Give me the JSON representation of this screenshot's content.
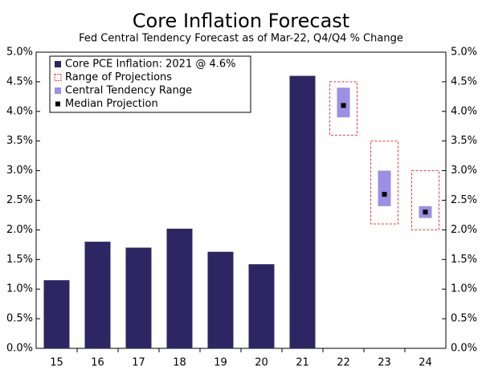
{
  "chart_data": {
    "type": "bar",
    "title": "Core Inflation Forecast",
    "subtitle": "Fed Central Tendency Forecast as of Mar-22, Q4/Q4 % Change",
    "categories": [
      "15",
      "16",
      "17",
      "18",
      "19",
      "20",
      "21",
      "22",
      "23",
      "24"
    ],
    "series": [
      {
        "name": "Core PCE Inflation: 2021 @ 4.6%",
        "kind": "bar",
        "color": "#2e2662",
        "values": [
          1.15,
          1.8,
          1.7,
          2.02,
          1.63,
          1.42,
          4.6,
          null,
          null,
          null
        ]
      },
      {
        "name": "Range of Projections",
        "kind": "range-outline",
        "color": "#e8383d",
        "low": [
          null,
          null,
          null,
          null,
          null,
          null,
          null,
          3.6,
          2.1,
          2.0
        ],
        "high": [
          null,
          null,
          null,
          null,
          null,
          null,
          null,
          4.5,
          3.5,
          3.0
        ]
      },
      {
        "name": "Central Tendency Range",
        "kind": "range",
        "color": "#9d8fe3",
        "low": [
          null,
          null,
          null,
          null,
          null,
          null,
          null,
          3.9,
          2.4,
          2.2
        ],
        "high": [
          null,
          null,
          null,
          null,
          null,
          null,
          null,
          4.4,
          3.0,
          2.4
        ]
      },
      {
        "name": "Median Projection",
        "kind": "point",
        "color": "#000000",
        "values": [
          null,
          null,
          null,
          null,
          null,
          null,
          null,
          4.1,
          2.6,
          2.3
        ]
      }
    ],
    "ylim": [
      0,
      5
    ],
    "yticks": [
      {
        "value": 0,
        "label": "0.0%"
      },
      {
        "value": 0.5,
        "label": "0.5%"
      },
      {
        "value": 1,
        "label": "1.0%"
      },
      {
        "value": 1.5,
        "label": "1.5%"
      },
      {
        "value": 2,
        "label": "2.0%"
      },
      {
        "value": 2.5,
        "label": "2.5%"
      },
      {
        "value": 3,
        "label": "3.0%"
      },
      {
        "value": 3.5,
        "label": "3.5%"
      },
      {
        "value": 4,
        "label": "4.0%"
      },
      {
        "value": 4.5,
        "label": "4.5%"
      },
      {
        "value": 5,
        "label": "5.0%"
      }
    ],
    "y2lim": [
      0,
      5
    ],
    "y2ticks": [
      {
        "value": 0,
        "label": "0.0%"
      },
      {
        "value": 0.5,
        "label": "0.5%"
      },
      {
        "value": 1,
        "label": "1.0%"
      },
      {
        "value": 1.5,
        "label": "1.5%"
      },
      {
        "value": 2,
        "label": "2.0%"
      },
      {
        "value": 2.5,
        "label": "2.5%"
      },
      {
        "value": 3,
        "label": "3.0%"
      },
      {
        "value": 3.5,
        "label": "3.5%"
      },
      {
        "value": 4,
        "label": "4.0%"
      },
      {
        "value": 4.5,
        "label": "4.5%"
      },
      {
        "value": 5,
        "label": "5.0%"
      }
    ],
    "grid": false
  }
}
